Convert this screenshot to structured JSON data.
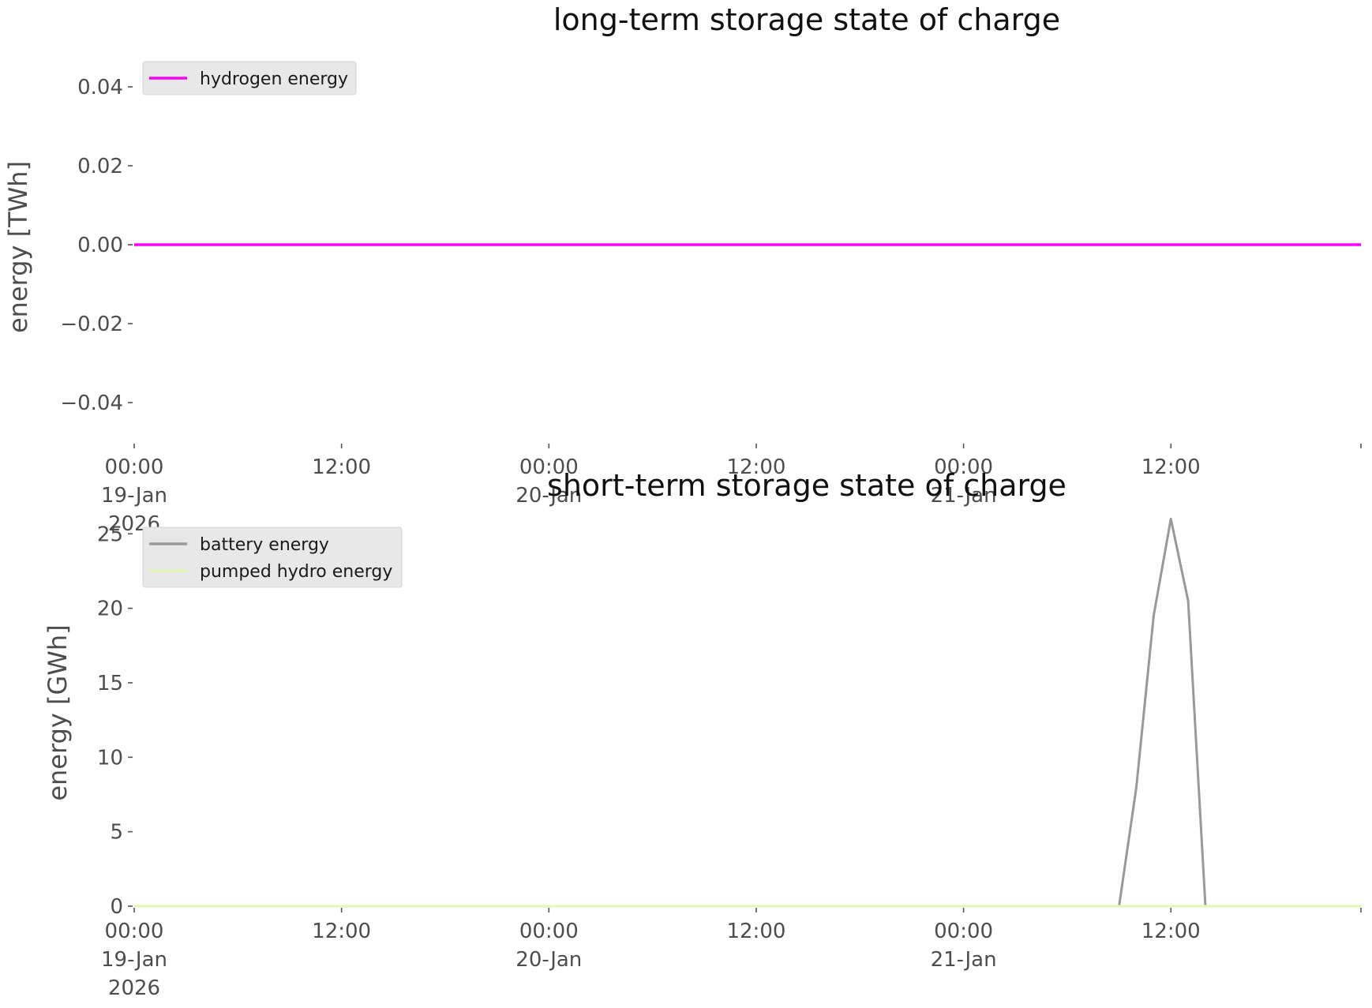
{
  "colors": {
    "hydrogen_energy": "#ff00ff",
    "battery_energy": "#999999",
    "pumped_hydro_energy": "#e3f7b5",
    "tick_text": "#4d4d4d",
    "legend_background": "#e8e8e8"
  },
  "chart_data": [
    {
      "type": "line",
      "title": "long-term storage state of charge",
      "ylabel": "energy [TWh]",
      "xlabel": "",
      "xlim": [
        "2026-01-19T00:00",
        "2026-01-21T23:00"
      ],
      "ylim": [
        -0.05,
        0.05
      ],
      "yticks": [
        0.04,
        0.02,
        0.0,
        -0.02,
        -0.04
      ],
      "ytick_labels": [
        "0.04",
        "0.02",
        "0.00",
        "−0.02",
        "−0.04"
      ],
      "xticks": [
        {
          "t": "2026-01-19T00:00",
          "lines": [
            "00:00",
            "19-Jan",
            "2026"
          ]
        },
        {
          "t": "2026-01-19T12:00",
          "lines": [
            "12:00"
          ]
        },
        {
          "t": "2026-01-20T00:00",
          "lines": [
            "00:00",
            "20-Jan"
          ]
        },
        {
          "t": "2026-01-20T12:00",
          "lines": [
            "12:00"
          ]
        },
        {
          "t": "2026-01-21T00:00",
          "lines": [
            "00:00",
            "21-Jan"
          ]
        },
        {
          "t": "2026-01-21T12:00",
          "lines": [
            "12:00"
          ]
        }
      ],
      "grid": false,
      "legend_placement": "top-left",
      "series": [
        {
          "name": "hydrogen energy",
          "color": "#ff00ff",
          "x": [
            "2026-01-19T00:00",
            "2026-01-21T23:00"
          ],
          "y": [
            0,
            0
          ]
        }
      ]
    },
    {
      "type": "line",
      "title": "short-term storage state of charge",
      "ylabel": "energy [GWh]",
      "xlabel": "",
      "xlim": [
        "2026-01-19T00:00",
        "2026-01-21T23:00"
      ],
      "ylim": [
        0,
        26.5
      ],
      "yticks": [
        0,
        5,
        10,
        15,
        20,
        25
      ],
      "ytick_labels": [
        "0",
        "5",
        "10",
        "15",
        "20",
        "25"
      ],
      "xticks": [
        {
          "t": "2026-01-19T00:00",
          "lines": [
            "00:00",
            "19-Jan",
            "2026"
          ]
        },
        {
          "t": "2026-01-19T12:00",
          "lines": [
            "12:00"
          ]
        },
        {
          "t": "2026-01-20T00:00",
          "lines": [
            "00:00",
            "20-Jan"
          ]
        },
        {
          "t": "2026-01-20T12:00",
          "lines": [
            "12:00"
          ]
        },
        {
          "t": "2026-01-21T00:00",
          "lines": [
            "00:00",
            "21-Jan"
          ]
        },
        {
          "t": "2026-01-21T12:00",
          "lines": [
            "12:00"
          ]
        }
      ],
      "grid": false,
      "legend_placement": "top-left",
      "series": [
        {
          "name": "battery energy",
          "color": "#999999",
          "x": [
            "2026-01-19T00:00",
            "2026-01-21T09:00",
            "2026-01-21T10:00",
            "2026-01-21T11:00",
            "2026-01-21T12:00",
            "2026-01-21T13:00",
            "2026-01-21T14:00",
            "2026-01-21T15:00",
            "2026-01-21T23:00"
          ],
          "y": [
            0,
            0,
            8,
            19.5,
            26,
            20.5,
            0,
            0,
            0
          ]
        },
        {
          "name": "pumped hydro energy",
          "color": "#e3f7b5",
          "x": [
            "2026-01-19T00:00",
            "2026-01-21T23:00"
          ],
          "y": [
            0,
            0
          ]
        }
      ]
    }
  ]
}
